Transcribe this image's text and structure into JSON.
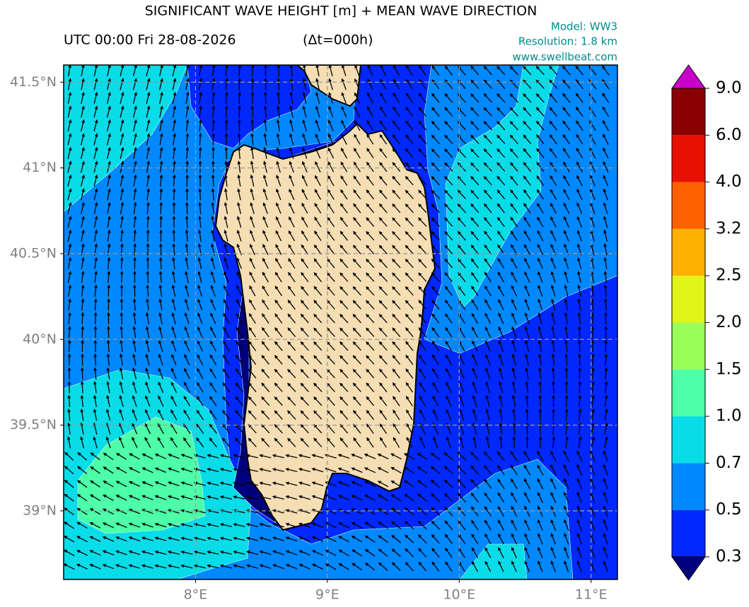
{
  "header": {
    "title": "SIGNIFICANT WAVE HEIGHT [m] + MEAN WAVE DIRECTION",
    "time": "UTC 00:00 Fri 28-08-2026",
    "step": "(Δt=000h)",
    "model": "Model: WW3",
    "resolution": "Resolution: 1.8 km",
    "site": "www.swellbeat.com"
  },
  "map": {
    "xlim": [
      7.0,
      11.2
    ],
    "ylim": [
      38.6,
      41.6
    ],
    "xticks": [
      {
        "value": 8,
        "label": "8°E"
      },
      {
        "value": 9,
        "label": "9°E"
      },
      {
        "value": 10,
        "label": "10°E"
      },
      {
        "value": 11,
        "label": "11°E"
      }
    ],
    "yticks": [
      {
        "value": 39,
        "label": "39°N"
      },
      {
        "value": 39.5,
        "label": "39.5°N"
      },
      {
        "value": 40,
        "label": "40°N"
      },
      {
        "value": 40.5,
        "label": "40.5°N"
      },
      {
        "value": 41,
        "label": "41°N"
      },
      {
        "value": 41.5,
        "label": "41.5°N"
      }
    ],
    "grid": true
  },
  "colorbar": {
    "ticks": [
      0.3,
      0.5,
      0.7,
      {
        "value": 1,
        "label": "1.0"
      },
      1.5,
      {
        "value": 2,
        "label": "2.0"
      },
      2.5,
      3.2,
      {
        "value": 4,
        "label": "4.0"
      },
      {
        "value": 6,
        "label": "6.0"
      },
      {
        "value": 9,
        "label": "9.0"
      }
    ],
    "colors": [
      "#0028ff",
      "#0088ff",
      "#08dce8",
      "#4cffa8",
      "#98ff58",
      "#e0f418",
      "#ffb000",
      "#ff6000",
      "#e81000",
      "#8b0000"
    ],
    "under": "#00007f",
    "over": "#c800c8"
  }
}
